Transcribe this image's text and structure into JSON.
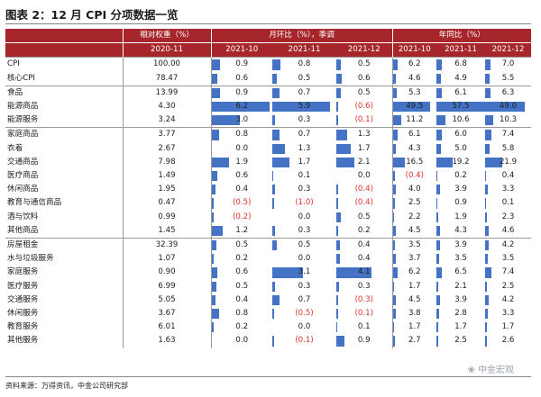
{
  "title": "图表 2：12 月 CPI 分项数据一览",
  "headers": {
    "weight": "相对权重（%）",
    "mom": "月环比（%），季调",
    "yoy": "年同比（%）",
    "weight_cols": [
      "2020-11"
    ],
    "mom_cols": [
      "2021-10",
      "2021-11",
      "2021-12"
    ],
    "yoy_cols": [
      "2021-10",
      "2021-11",
      "2021-12"
    ]
  },
  "groups": [
    {
      "rows": [
        {
          "label": "CPI",
          "weight": "100.00",
          "mom": [
            "0.9",
            "0.8",
            "0.5"
          ],
          "yoy": [
            "6.2",
            "6.8",
            "7.0"
          ]
        },
        {
          "label": "核心CPI",
          "weight": "78.47",
          "mom": [
            "0.6",
            "0.5",
            "0.6"
          ],
          "yoy": [
            "4.6",
            "4.9",
            "5.5"
          ]
        }
      ]
    },
    {
      "rows": [
        {
          "label": "食品",
          "weight": "13.99",
          "mom": [
            "0.9",
            "0.7",
            "0.5"
          ],
          "yoy": [
            "5.3",
            "6.1",
            "6.3"
          ]
        },
        {
          "label": "能源商品",
          "weight": "4.30",
          "mom": [
            "6.2",
            "5.9",
            "(0.6)"
          ],
          "yoy": [
            "49.5",
            "57.5",
            "49.0"
          ]
        },
        {
          "label": "能源服务",
          "weight": "3.24",
          "mom": [
            "3.0",
            "0.3",
            "(0.1)"
          ],
          "yoy": [
            "11.2",
            "10.6",
            "10.3"
          ]
        }
      ]
    },
    {
      "rows": [
        {
          "label": "家庭商品",
          "weight": "3.77",
          "mom": [
            "0.8",
            "0.7",
            "1.3"
          ],
          "yoy": [
            "6.1",
            "6.0",
            "7.4"
          ]
        },
        {
          "label": "衣着",
          "weight": "2.67",
          "mom": [
            "0.0",
            "1.3",
            "1.7"
          ],
          "yoy": [
            "4.3",
            "5.0",
            "5.8"
          ]
        },
        {
          "label": "交通商品",
          "weight": "7.98",
          "mom": [
            "1.9",
            "1.7",
            "2.1"
          ],
          "yoy": [
            "16.5",
            "19.2",
            "21.9"
          ]
        },
        {
          "label": "医疗商品",
          "weight": "1.49",
          "mom": [
            "0.6",
            "0.1",
            "0.0"
          ],
          "yoy": [
            "(0.4)",
            "0.2",
            "0.4"
          ]
        },
        {
          "label": "休闲商品",
          "weight": "1.95",
          "mom": [
            "0.4",
            "0.3",
            "(0.4)"
          ],
          "yoy": [
            "4.0",
            "3.9",
            "3.3"
          ]
        },
        {
          "label": "教育与通信商品",
          "weight": "0.47",
          "mom": [
            "(0.5)",
            "(1.0)",
            "(0.4)"
          ],
          "yoy": [
            "2.5",
            "0.9",
            "0.1"
          ]
        },
        {
          "label": "酒与饮料",
          "weight": "0.99",
          "mom": [
            "(0.2)",
            "0.0",
            "0.5"
          ],
          "yoy": [
            "2.2",
            "1.9",
            "2.3"
          ]
        },
        {
          "label": "其他商品",
          "weight": "1.45",
          "mom": [
            "1.2",
            "0.3",
            "0.2"
          ],
          "yoy": [
            "4.5",
            "4.3",
            "4.6"
          ]
        }
      ]
    },
    {
      "rows": [
        {
          "label": "房屋租金",
          "weight": "32.39",
          "mom": [
            "0.5",
            "0.5",
            "0.4"
          ],
          "yoy": [
            "3.5",
            "3.9",
            "4.2"
          ]
        },
        {
          "label": "水与垃圾服务",
          "weight": "1.07",
          "mom": [
            "0.2",
            "0.0",
            "0.4"
          ],
          "yoy": [
            "3.7",
            "3.5",
            "3.5"
          ]
        },
        {
          "label": "家庭服务",
          "weight": "0.90",
          "mom": [
            "0.6",
            "3.1",
            "4.1"
          ],
          "yoy": [
            "6.2",
            "6.5",
            "7.4"
          ]
        },
        {
          "label": "医疗服务",
          "weight": "6.99",
          "mom": [
            "0.5",
            "0.3",
            "0.3"
          ],
          "yoy": [
            "1.7",
            "2.1",
            "2.5"
          ]
        },
        {
          "label": "交通服务",
          "weight": "5.05",
          "mom": [
            "0.4",
            "0.7",
            "(0.3)"
          ],
          "yoy": [
            "4.5",
            "3.9",
            "4.2"
          ]
        },
        {
          "label": "休闲服务",
          "weight": "3.67",
          "mom": [
            "0.8",
            "(0.5)",
            "(0.1)"
          ],
          "yoy": [
            "3.8",
            "2.8",
            "3.3"
          ]
        },
        {
          "label": "教育服务",
          "weight": "6.01",
          "mom": [
            "0.2",
            "0.0",
            "0.1"
          ],
          "yoy": [
            "1.7",
            "1.7",
            "1.7"
          ]
        },
        {
          "label": "其他服务",
          "weight": "1.63",
          "mom": [
            "0.0",
            "(0.1)",
            "0.9"
          ],
          "yoy": [
            "2.7",
            "2.5",
            "2.6"
          ]
        }
      ]
    }
  ],
  "footer": {
    "source": "资料来源：万得资讯，中金公司研究部",
    "watermark": "中金宏观"
  },
  "colors": {
    "header_bg": "#a6262c",
    "bar": "#4472c4",
    "negative": "#e0332e"
  }
}
